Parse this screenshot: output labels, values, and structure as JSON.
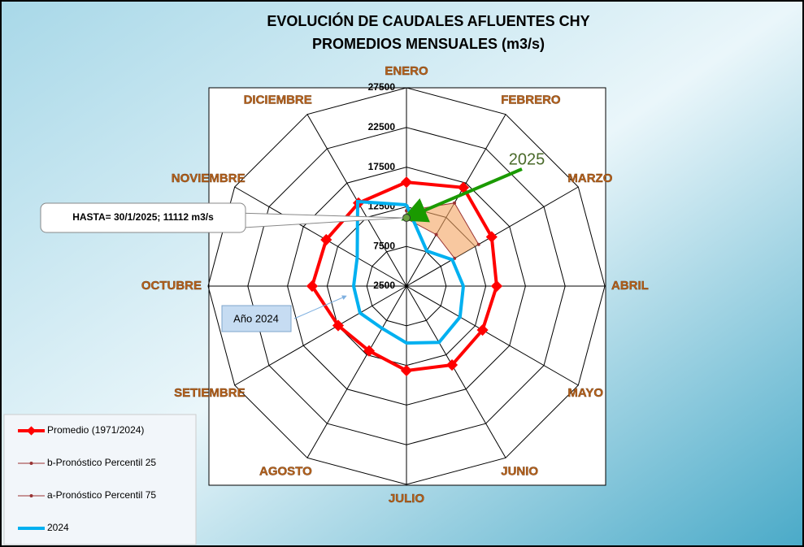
{
  "chart_data": {
    "type": "radar",
    "title": "EVOLUCIÓN DE CAUDALES AFLUENTES CHY",
    "subtitle": "PROMEDIOS MENSUALES (m3/s)",
    "categories": [
      "ENERO",
      "FEBRERO",
      "MARZO",
      "ABRIL",
      "MAYO",
      "JUNIO",
      "JULIO",
      "AGOSTO",
      "SETIEMBRE",
      "OCTUBRE",
      "NOVIEMBRE",
      "DICIEMBRE"
    ],
    "ylim": [
      2500,
      27500
    ],
    "yticks": [
      2500,
      7500,
      12500,
      17500,
      22500,
      27500
    ],
    "series": [
      {
        "name": "Promedio (1971/2024)",
        "color": "#ff0000",
        "values": [
          15600,
          16850,
          14900,
          13870,
          13570,
          13980,
          13150,
          11930,
          12440,
          14390,
          14180,
          14590
        ]
      },
      {
        "name": "b-Pronóstico Percentil 25",
        "color": "#993333",
        "values": [
          11000,
          10000,
          9500,
          null,
          null,
          null,
          null,
          null,
          null,
          null,
          null,
          null
        ]
      },
      {
        "name": "a-Pronóstico Percentil 75",
        "color": "#993333",
        "values": [
          12000,
          14600,
          13000,
          null,
          null,
          null,
          null,
          null,
          null,
          null,
          null,
          null
        ]
      },
      {
        "name": "2024",
        "color": "#00b0f0",
        "values": [
          12750,
          7620,
          9160,
          9670,
          10290,
          10700,
          9670,
          8650,
          9260,
          9160,
          9670,
          14800
        ]
      }
    ],
    "current": {
      "label": "2025",
      "value": 11112,
      "callout": "HASTA= 30/1/2025; 11112 m3/s",
      "color": "#2e8b00"
    },
    "series_callout": "Año 2024",
    "legend": "bottom-left",
    "grid": true
  }
}
